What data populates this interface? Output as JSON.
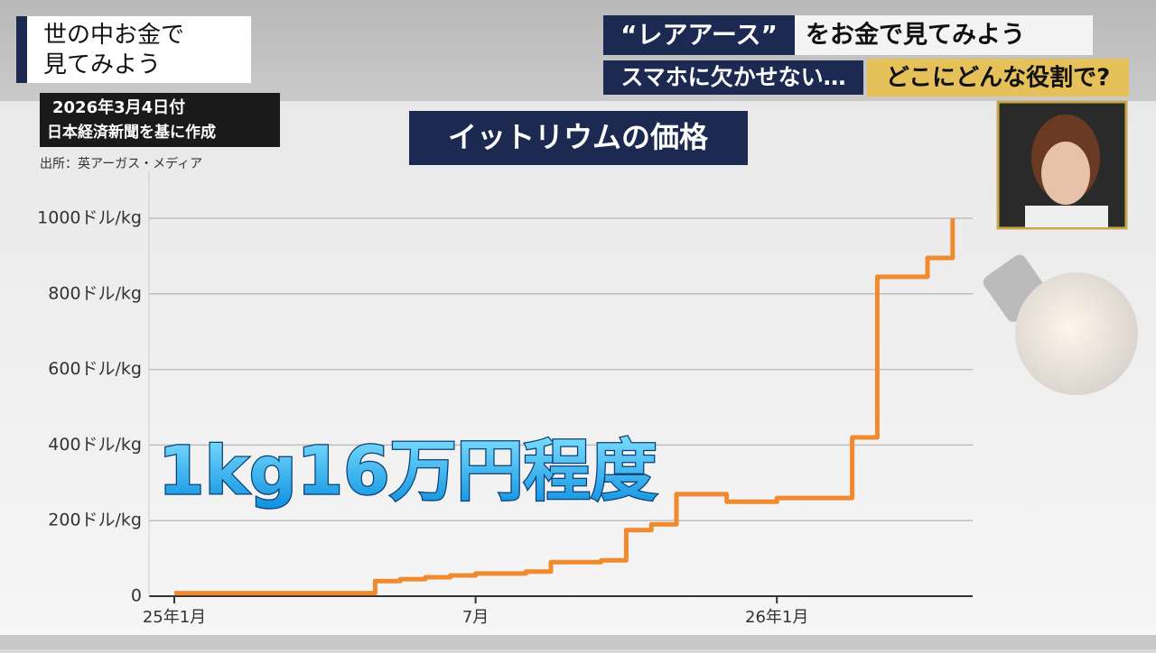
{
  "header": {
    "logo_line1": "世の中お金で",
    "logo_line2": "見てみよう",
    "date": "2026年3月4日付",
    "note": "日本経済新聞を基に作成",
    "topic_highlight": "“レアアース”",
    "topic_rest": "をお金で見てみよう",
    "sub_left": "スマホに欠かせない…",
    "sub_right": "どこにどんな役割で?"
  },
  "chart_data": {
    "type": "line",
    "title": "イットリウムの価格",
    "source": "出所：英アーガス・メディア",
    "annotation": "1kg16万円程度",
    "step": true,
    "color": "#f08a2c",
    "categories": [
      "25年1月",
      null,
      null,
      null,
      null,
      null,
      null,
      null,
      null,
      null,
      null,
      null,
      "7月",
      null,
      null,
      null,
      null,
      null,
      null,
      null,
      null,
      null,
      null,
      null,
      "26年1月",
      null,
      null,
      null,
      null,
      null,
      null,
      null
    ],
    "values": [
      8,
      8,
      8,
      8,
      8,
      8,
      8,
      8,
      40,
      45,
      50,
      55,
      60,
      60,
      65,
      90,
      90,
      95,
      175,
      190,
      270,
      270,
      250,
      250,
      260,
      260,
      260,
      420,
      845,
      845,
      895,
      1000
    ],
    "ylim": [
      0,
      1000
    ],
    "yticks": [
      0,
      {
        "value": 200,
        "label": "200ドル/kg"
      },
      {
        "value": 400,
        "label": "400ドル/kg"
      },
      {
        "value": 600,
        "label": "600ドル/kg"
      },
      {
        "value": 800,
        "label": "800ドル/kg"
      },
      {
        "value": 1000,
        "label": "1000ドル/kg"
      }
    ],
    "grid": true
  }
}
